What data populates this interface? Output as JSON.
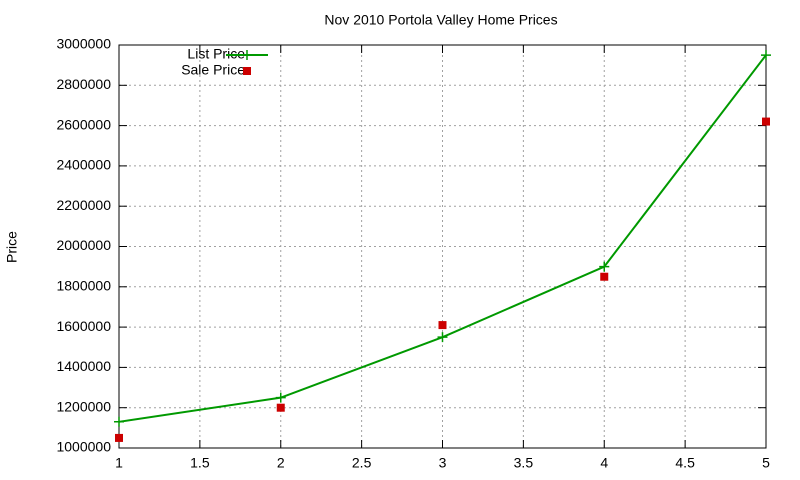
{
  "chart_data": {
    "type": "line",
    "title": "Nov 2010 Portola Valley Home Prices",
    "y_label": "Price",
    "x": [
      1,
      2,
      3,
      4,
      5
    ],
    "series": [
      {
        "name": "List Price",
        "color": "#009900",
        "line": true,
        "marker": "plus",
        "values": [
          1130000,
          1250000,
          1550000,
          1900000,
          2950000
        ]
      },
      {
        "name": "Sale Price",
        "color": "#cc0000",
        "line": false,
        "marker": "square",
        "values": [
          1050000,
          1200000,
          1610000,
          1850000,
          2620000
        ]
      }
    ],
    "xlim": [
      1,
      5
    ],
    "xticks": [
      1,
      1.5,
      2,
      2.5,
      3,
      3.5,
      4,
      4.5,
      5
    ],
    "ylim": [
      1000000,
      3000000
    ],
    "yticks": [
      1000000,
      1200000,
      1400000,
      1600000,
      1800000,
      2000000,
      2200000,
      2400000,
      2600000,
      2800000,
      3000000
    ],
    "grid": true,
    "legend": "top-left"
  }
}
